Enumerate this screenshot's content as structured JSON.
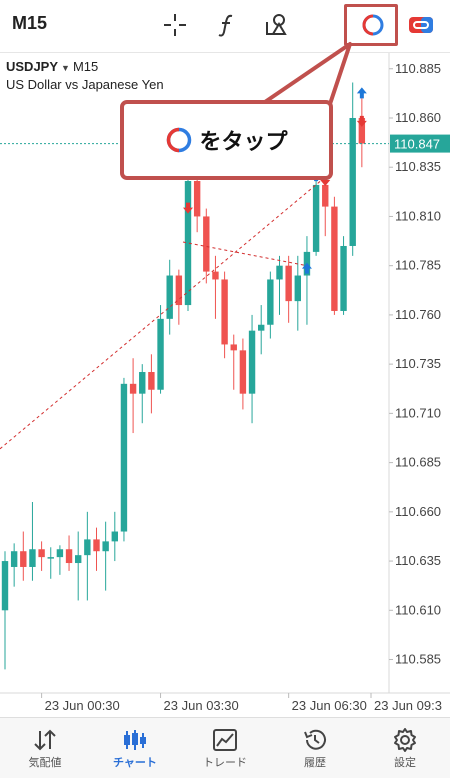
{
  "toolbar": {
    "timeframe": "M15",
    "icons": [
      "crosshair-icon",
      "indicators-icon",
      "objects-icon",
      "one-click-trading-icon",
      "more-icon"
    ],
    "highlight_color": "#c0504d"
  },
  "symbol": {
    "name": "USDJPY",
    "timeframe": "M15",
    "description": "US Dollar vs Japanese Yen"
  },
  "callout": {
    "text": "をタップ",
    "icon": "one-click-trading-icon"
  },
  "chart_data": {
    "type": "candlestick",
    "y_ticks": [
      "110.885",
      "110.860",
      "110.835",
      "110.810",
      "110.785",
      "110.760",
      "110.735",
      "110.710",
      "110.685",
      "110.660",
      "110.635",
      "110.610",
      "110.585"
    ],
    "x_ticks": [
      "23 Jun 00:30",
      "23 Jun 03:30",
      "23 Jun 06:30",
      "23 Jun 09:3"
    ],
    "current_price": "110.847",
    "ylim": [
      110.568,
      110.893
    ],
    "colors": {
      "up": "#26a69a",
      "down": "#ef5350",
      "current": "#26a69a",
      "trend": "#d32f2f"
    },
    "candles": [
      {
        "o": 110.61,
        "h": 110.64,
        "l": 110.58,
        "c": 110.635
      },
      {
        "o": 110.632,
        "h": 110.644,
        "l": 110.622,
        "c": 110.64
      },
      {
        "o": 110.64,
        "h": 110.65,
        "l": 110.625,
        "c": 110.632
      },
      {
        "o": 110.632,
        "h": 110.665,
        "l": 110.625,
        "c": 110.641
      },
      {
        "o": 110.641,
        "h": 110.645,
        "l": 110.63,
        "c": 110.637
      },
      {
        "o": 110.637,
        "h": 110.642,
        "l": 110.626,
        "c": 110.637
      },
      {
        "o": 110.637,
        "h": 110.643,
        "l": 110.628,
        "c": 110.641
      },
      {
        "o": 110.641,
        "h": 110.648,
        "l": 110.63,
        "c": 110.634
      },
      {
        "o": 110.634,
        "h": 110.65,
        "l": 110.615,
        "c": 110.638
      },
      {
        "o": 110.638,
        "h": 110.66,
        "l": 110.615,
        "c": 110.646
      },
      {
        "o": 110.646,
        "h": 110.652,
        "l": 110.63,
        "c": 110.64
      },
      {
        "o": 110.64,
        "h": 110.655,
        "l": 110.62,
        "c": 110.645
      },
      {
        "o": 110.645,
        "h": 110.66,
        "l": 110.635,
        "c": 110.65
      },
      {
        "o": 110.65,
        "h": 110.728,
        "l": 110.645,
        "c": 110.725
      },
      {
        "o": 110.725,
        "h": 110.738,
        "l": 110.7,
        "c": 110.72
      },
      {
        "o": 110.72,
        "h": 110.735,
        "l": 110.705,
        "c": 110.731
      },
      {
        "o": 110.731,
        "h": 110.74,
        "l": 110.71,
        "c": 110.722
      },
      {
        "o": 110.722,
        "h": 110.765,
        "l": 110.72,
        "c": 110.758
      },
      {
        "o": 110.758,
        "h": 110.788,
        "l": 110.75,
        "c": 110.78
      },
      {
        "o": 110.78,
        "h": 110.783,
        "l": 110.755,
        "c": 110.765
      },
      {
        "o": 110.765,
        "h": 110.83,
        "l": 110.762,
        "c": 110.828
      },
      {
        "o": 110.828,
        "h": 110.845,
        "l": 110.802,
        "c": 110.81
      },
      {
        "o": 110.81,
        "h": 110.814,
        "l": 110.776,
        "c": 110.782
      },
      {
        "o": 110.782,
        "h": 110.79,
        "l": 110.758,
        "c": 110.778
      },
      {
        "o": 110.778,
        "h": 110.782,
        "l": 110.738,
        "c": 110.745
      },
      {
        "o": 110.745,
        "h": 110.75,
        "l": 110.722,
        "c": 110.742
      },
      {
        "o": 110.742,
        "h": 110.748,
        "l": 110.712,
        "c": 110.72
      },
      {
        "o": 110.72,
        "h": 110.76,
        "l": 110.705,
        "c": 110.752
      },
      {
        "o": 110.752,
        "h": 110.765,
        "l": 110.74,
        "c": 110.755
      },
      {
        "o": 110.755,
        "h": 110.782,
        "l": 110.748,
        "c": 110.778
      },
      {
        "o": 110.778,
        "h": 110.79,
        "l": 110.76,
        "c": 110.785
      },
      {
        "o": 110.785,
        "h": 110.79,
        "l": 110.756,
        "c": 110.767
      },
      {
        "o": 110.767,
        "h": 110.79,
        "l": 110.752,
        "c": 110.78
      },
      {
        "o": 110.78,
        "h": 110.8,
        "l": 110.755,
        "c": 110.792
      },
      {
        "o": 110.792,
        "h": 110.83,
        "l": 110.79,
        "c": 110.826
      },
      {
        "o": 110.826,
        "h": 110.835,
        "l": 110.8,
        "c": 110.815
      },
      {
        "o": 110.815,
        "h": 110.82,
        "l": 110.76,
        "c": 110.762
      },
      {
        "o": 110.762,
        "h": 110.8,
        "l": 110.76,
        "c": 110.795
      },
      {
        "o": 110.795,
        "h": 110.878,
        "l": 110.79,
        "c": 110.86
      },
      {
        "o": 110.86,
        "h": 110.87,
        "l": 110.835,
        "c": 110.847
      }
    ],
    "trend_lines": [
      {
        "from": {
          "i": 0,
          "p": 110.692
        },
        "to": {
          "i": 35,
          "p": 110.83
        }
      },
      {
        "from": {
          "i": 20,
          "p": 110.797
        },
        "to": {
          "i": 33,
          "p": 110.785
        }
      }
    ],
    "trade_arrows": [
      {
        "i": 20,
        "p": 110.814,
        "dir": "down"
      },
      {
        "i": 33,
        "p": 110.784,
        "dir": "up"
      },
      {
        "i": 34,
        "p": 110.831,
        "dir": "up"
      },
      {
        "i": 35,
        "p": 110.828,
        "dir": "down"
      },
      {
        "i": 39,
        "p": 110.873,
        "dir": "up"
      },
      {
        "i": 39,
        "p": 110.858,
        "dir": "down"
      }
    ]
  },
  "bottom_nav": {
    "items": [
      {
        "label": "気配値",
        "icon": "quotes-icon"
      },
      {
        "label": "チャート",
        "icon": "chart-icon"
      },
      {
        "label": "トレード",
        "icon": "trade-icon"
      },
      {
        "label": "履歴",
        "icon": "history-icon"
      },
      {
        "label": "設定",
        "icon": "settings-icon"
      }
    ],
    "active_index": 1
  }
}
